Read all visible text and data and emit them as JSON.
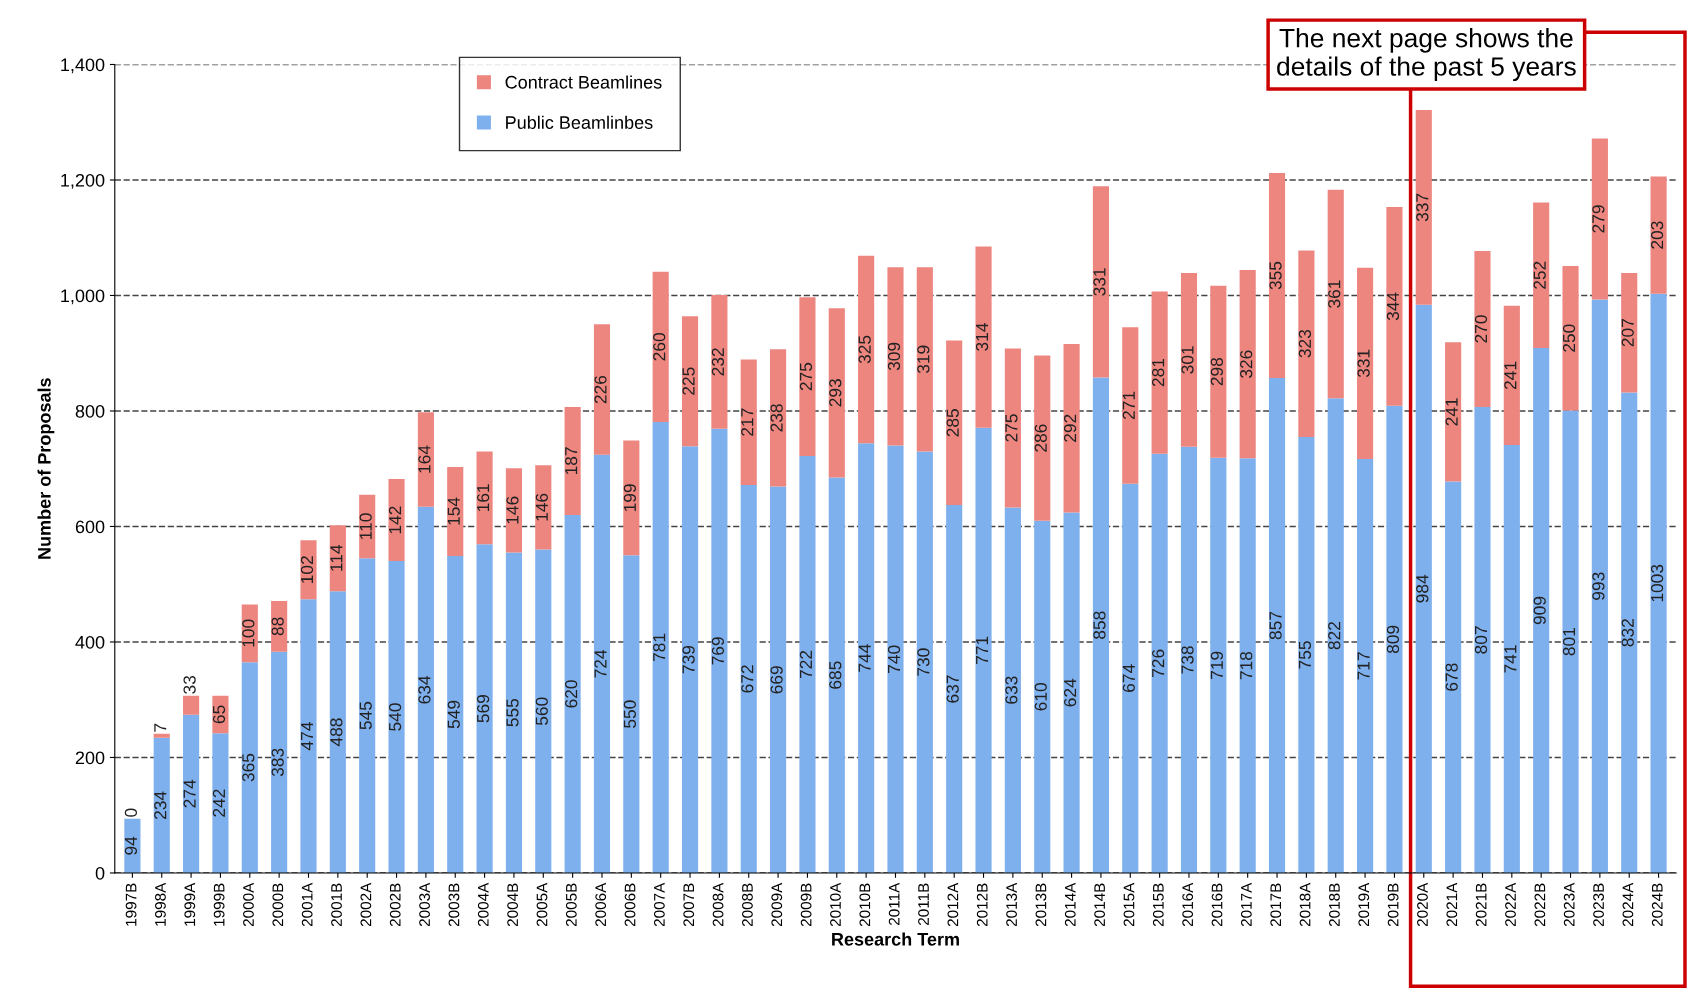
{
  "chart_data": {
    "type": "bar",
    "stacked": true,
    "xlabel": "Research Term",
    "ylabel": "Number of Proposals",
    "categories": [
      "1997B",
      "1998A",
      "1999A",
      "1999B",
      "2000A",
      "2000B",
      "2001A",
      "2001B",
      "2002A",
      "2002B",
      "2003A",
      "2003B",
      "2004A",
      "2004B",
      "2005A",
      "2005B",
      "2006A",
      "2006B",
      "2007A",
      "2007B",
      "2008A",
      "2008B",
      "2009A",
      "2009B",
      "2010A",
      "2010B",
      "2011A",
      "2011B",
      "2012A",
      "2012B",
      "2013A",
      "2013B",
      "2014A",
      "2014B",
      "2015A",
      "2015B",
      "2016A",
      "2016B",
      "2017A",
      "2017B",
      "2018A",
      "2018B",
      "2019A",
      "2019B",
      "2020A",
      "2021A",
      "2021B",
      "2022A",
      "2022B",
      "2023A",
      "2023B",
      "2024A",
      "2024B"
    ],
    "series": [
      {
        "name": "Public Beamlinbes",
        "color": "#7fb0ee",
        "values": [
          94,
          234,
          274,
          242,
          365,
          383,
          474,
          488,
          545,
          540,
          634,
          549,
          569,
          555,
          560,
          620,
          724,
          550,
          781,
          739,
          769,
          672,
          669,
          722,
          685,
          744,
          740,
          730,
          637,
          771,
          633,
          610,
          624,
          858,
          674,
          726,
          738,
          719,
          718,
          857,
          755,
          822,
          717,
          809,
          984,
          678,
          807,
          741,
          909,
          801,
          993,
          832,
          1003
        ]
      },
      {
        "name": "Contract Beamlines",
        "color": "#ee8680",
        "values": [
          0,
          7,
          33,
          65,
          100,
          88,
          102,
          114,
          110,
          142,
          164,
          154,
          161,
          146,
          146,
          187,
          226,
          199,
          260,
          225,
          232,
          217,
          238,
          275,
          293,
          325,
          309,
          319,
          285,
          314,
          275,
          286,
          292,
          331,
          271,
          281,
          301,
          298,
          326,
          355,
          323,
          361,
          331,
          344,
          337,
          241,
          270,
          241,
          252,
          250,
          279,
          207,
          203
        ]
      }
    ],
    "ylim": [
      0,
      1400
    ],
    "yticks": [
      0,
      200,
      400,
      600,
      800,
      {
        "value": 1000,
        "label": "1,000"
      },
      {
        "value": 1200,
        "label": "1,200"
      },
      {
        "value": 1400,
        "label": "1,400"
      }
    ],
    "grid": "y",
    "line_style": "dashed",
    "legend": "top left",
    "data_labels": true,
    "annotations": [
      "The next page shows the\ndetails of the past 5 years"
    ]
  }
}
